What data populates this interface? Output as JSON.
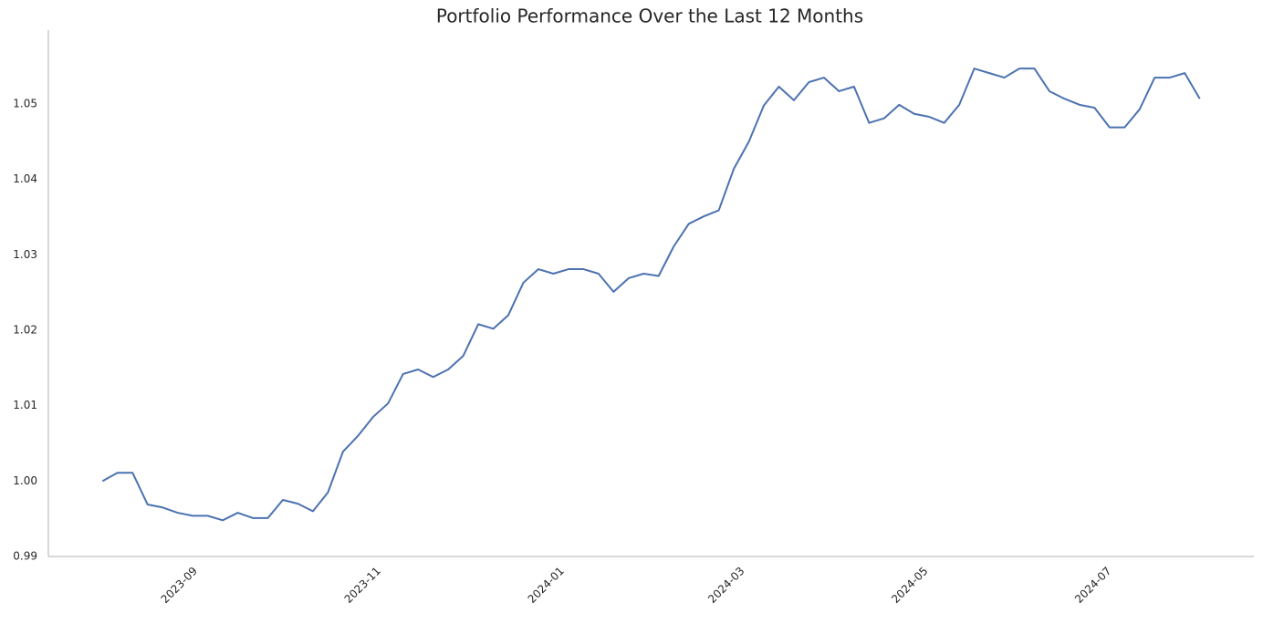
{
  "chart_data": {
    "type": "line",
    "title": "Portfolio Performance Over the Last 12 Months",
    "series": [
      {
        "color": "#4c72b0",
        "values": [
          1.0,
          1.0011,
          1.0011,
          0.9969,
          0.9965,
          0.9958,
          0.9954,
          0.9954,
          0.9948,
          0.9958,
          0.9951,
          0.9951,
          0.9975,
          0.997,
          0.996,
          0.9985,
          1.0039,
          1.006,
          1.0085,
          1.0103,
          1.0142,
          1.0148,
          1.0138,
          1.0148,
          1.0166,
          1.0208,
          1.0202,
          1.022,
          1.0263,
          1.0281,
          1.0275,
          1.0281,
          1.0281,
          1.0275,
          1.0251,
          1.0269,
          1.0275,
          1.0272,
          1.0311,
          1.0341,
          1.0351,
          1.0359,
          1.0414,
          1.045,
          1.0498,
          1.0523,
          1.0505,
          1.0529,
          1.0535,
          1.0517,
          1.0523,
          1.0475,
          1.0481,
          1.0499,
          1.0487,
          1.0483,
          1.0475,
          1.0499,
          1.0547,
          1.0541,
          1.0535,
          1.0547,
          1.0547,
          1.0517,
          1.0507,
          1.0499,
          1.0495,
          1.0469,
          1.0469,
          1.0493,
          1.0535,
          1.0535,
          1.0541,
          1.0507
        ]
      }
    ],
    "xlim": [
      -3.6,
      76.6
    ],
    "xticks": [
      {
        "value": 6.2,
        "label": "2023-09"
      },
      {
        "value": 18.4,
        "label": "2023-11"
      },
      {
        "value": 30.6,
        "label": "2024-01"
      },
      {
        "value": 42.6,
        "label": "2024-03"
      },
      {
        "value": 54.8,
        "label": "2024-05"
      },
      {
        "value": 67,
        "label": "2024-07"
      }
    ],
    "ylim": [
      0.99,
      1.0598
    ],
    "yticks": [
      0.99,
      {
        "value": 1.0,
        "label": "1.00"
      },
      1.01,
      1.02,
      1.03,
      1.04,
      1.05
    ],
    "grid": false
  }
}
